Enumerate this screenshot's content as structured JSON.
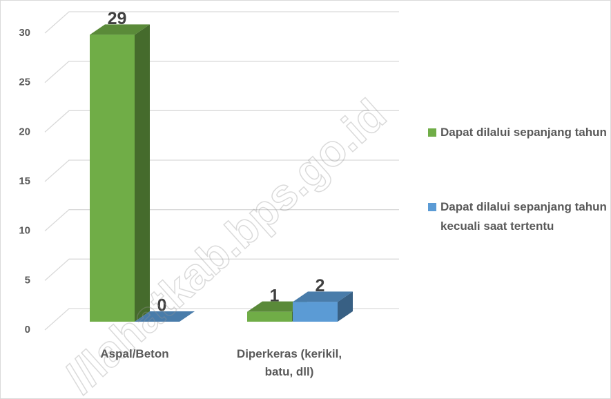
{
  "chart_data": {
    "type": "bar3d",
    "categories": [
      "Aspal/Beton",
      "Diperkeras (kerikil, batu, dll)"
    ],
    "series": [
      {
        "name": "Dapat dilalui sepanjang tahun",
        "color": "#70ad47",
        "values": [
          29,
          1
        ]
      },
      {
        "name": "Dapat dilalui sepanjang tahun kecuali saat tertentu",
        "color": "#5b9bd5",
        "values": [
          0,
          2
        ]
      }
    ],
    "ylim": [
      0,
      30
    ],
    "yticks": [
      0,
      5,
      10,
      15,
      20,
      25,
      30
    ],
    "grid": true,
    "legend": "right",
    "watermark": "//lahatkab.bps.go.id"
  }
}
